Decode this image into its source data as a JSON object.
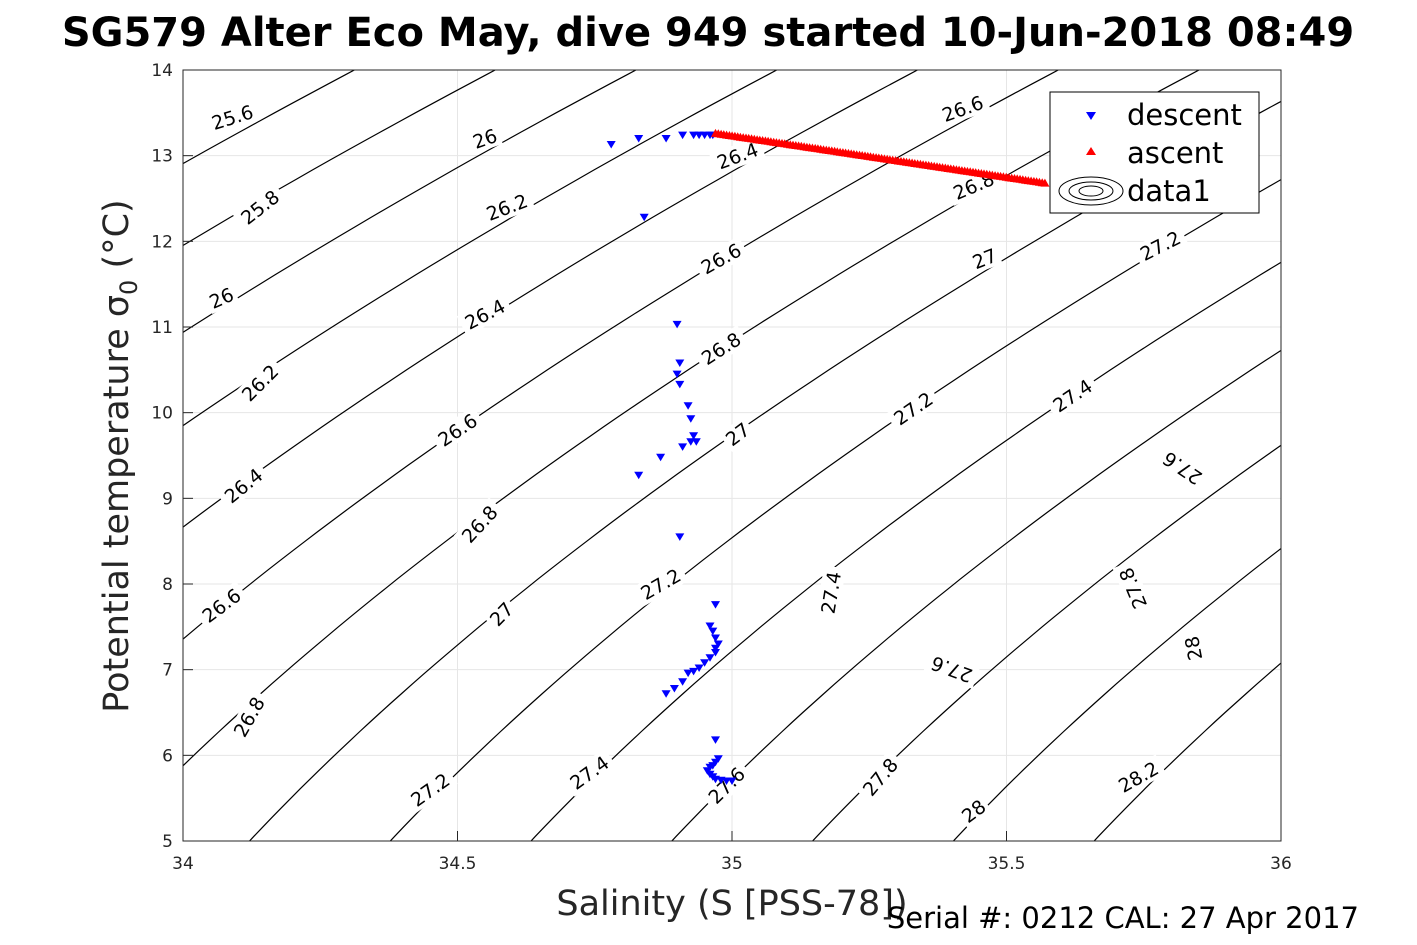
{
  "title": "SG579 Alter Eco May, dive 949 started 10-Jun-2018 08:49",
  "footer": "Serial #: 0212  CAL: 27 Apr 2017",
  "chart_data": {
    "type": "scatter",
    "xlabel": "Salinity (S [PSS-78])",
    "ylabel_main": "Potential temperature ",
    "ylabel_sym": "σ",
    "ylabel_sub": "0",
    "ylabel_unit": " (°C)",
    "xlim": [
      34,
      36
    ],
    "ylim": [
      5,
      14
    ],
    "xticks": [
      34,
      34.5,
      35,
      35.5,
      36
    ],
    "yticks": [
      5,
      6,
      7,
      8,
      9,
      10,
      11,
      12,
      13,
      14
    ],
    "grid": true,
    "legend_position": "top-right",
    "legend": [
      "descent",
      "ascent",
      "data1"
    ],
    "colors": {
      "descent": "#0000ff",
      "ascent": "#ff0000",
      "contour": "#000000",
      "axis": "#262626",
      "grid": "#e6e6e6"
    },
    "contours": {
      "type": "contour",
      "series_name": "data1",
      "levels": [
        "25.6",
        "25.8",
        "26",
        "26.2",
        "26.4",
        "26.6",
        "26.8",
        "27",
        "27.2",
        "27.4",
        "27.6",
        "27.8",
        "28",
        "28.2"
      ],
      "labels": [
        {
          "text": "25.6",
          "s": 34.09,
          "t": 13.45
        },
        {
          "text": "25.8",
          "s": 34.14,
          "t": 12.4
        },
        {
          "text": "26",
          "s": 34.07,
          "t": 11.34
        },
        {
          "text": "26.2",
          "s": 34.14,
          "t": 10.35
        },
        {
          "text": "26.4",
          "s": 34.11,
          "t": 9.15
        },
        {
          "text": "26.6",
          "s": 34.07,
          "t": 7.75
        },
        {
          "text": "26.8",
          "s": 34.12,
          "t": 6.45
        },
        {
          "text": "26",
          "s": 34.55,
          "t": 13.2
        },
        {
          "text": "26.2",
          "s": 34.59,
          "t": 12.4
        },
        {
          "text": "26.4",
          "s": 34.55,
          "t": 11.15
        },
        {
          "text": "26.6",
          "s": 34.5,
          "t": 9.8
        },
        {
          "text": "26.8",
          "s": 34.54,
          "t": 8.7
        },
        {
          "text": "27",
          "s": 34.58,
          "t": 7.65
        },
        {
          "text": "27.2",
          "s": 34.45,
          "t": 5.6
        },
        {
          "text": "26.4",
          "s": 35.01,
          "t": 13.0
        },
        {
          "text": "26.6",
          "s": 34.98,
          "t": 11.8
        },
        {
          "text": "26.8",
          "s": 34.98,
          "t": 10.75
        },
        {
          "text": "27",
          "s": 35.01,
          "t": 9.75
        },
        {
          "text": "27.2",
          "s": 34.87,
          "t": 8.0
        },
        {
          "text": "27.4",
          "s": 34.74,
          "t": 5.8
        },
        {
          "text": "27.6",
          "s": 34.99,
          "t": 5.65
        },
        {
          "text": "26.6",
          "s": 35.42,
          "t": 13.55
        },
        {
          "text": "26.8",
          "s": 35.44,
          "t": 12.65
        },
        {
          "text": "27",
          "s": 35.46,
          "t": 11.8
        },
        {
          "text": "27.2",
          "s": 35.33,
          "t": 10.05
        },
        {
          "text": "27.4",
          "s": 35.18,
          "t": 7.9
        },
        {
          "text": "27.6",
          "s": 35.4,
          "t": 7.0
        },
        {
          "text": "27.8",
          "s": 35.27,
          "t": 5.75
        },
        {
          "text": "28",
          "s": 35.44,
          "t": 5.35
        },
        {
          "text": "27.2",
          "s": 35.78,
          "t": 11.95
        },
        {
          "text": "27.4",
          "s": 35.62,
          "t": 10.2
        },
        {
          "text": "27.6",
          "s": 35.82,
          "t": 9.35
        },
        {
          "text": "27.8",
          "s": 35.73,
          "t": 7.95
        },
        {
          "text": "28",
          "s": 35.84,
          "t": 7.25
        },
        {
          "text": "28.2",
          "s": 35.74,
          "t": 5.75
        }
      ]
    },
    "series": [
      {
        "name": "descent",
        "marker": "triangle-down",
        "color": "#0000ff",
        "points": [
          [
            34.78,
            13.13
          ],
          [
            34.83,
            13.2
          ],
          [
            34.88,
            13.2
          ],
          [
            34.91,
            13.24
          ],
          [
            34.93,
            13.24
          ],
          [
            34.94,
            13.24
          ],
          [
            34.95,
            13.24
          ],
          [
            34.96,
            13.24
          ],
          [
            34.965,
            13.24
          ],
          [
            34.84,
            12.28
          ],
          [
            34.9,
            11.03
          ],
          [
            34.905,
            10.58
          ],
          [
            34.9,
            10.45
          ],
          [
            34.905,
            10.33
          ],
          [
            34.92,
            10.08
          ],
          [
            34.925,
            9.93
          ],
          [
            34.93,
            9.73
          ],
          [
            34.925,
            9.66
          ],
          [
            34.935,
            9.66
          ],
          [
            34.91,
            9.6
          ],
          [
            34.87,
            9.48
          ],
          [
            34.83,
            9.27
          ],
          [
            34.905,
            8.55
          ],
          [
            34.97,
            7.76
          ],
          [
            34.96,
            7.51
          ],
          [
            34.965,
            7.45
          ],
          [
            34.97,
            7.37
          ],
          [
            34.975,
            7.3
          ],
          [
            34.97,
            7.25
          ],
          [
            34.97,
            7.2
          ],
          [
            34.96,
            7.14
          ],
          [
            34.95,
            7.08
          ],
          [
            34.94,
            7.02
          ],
          [
            34.92,
            6.96
          ],
          [
            34.93,
            6.98
          ],
          [
            34.91,
            6.86
          ],
          [
            34.895,
            6.78
          ],
          [
            34.88,
            6.72
          ],
          [
            34.97,
            6.18
          ],
          [
            34.975,
            5.96
          ],
          [
            34.97,
            5.92
          ],
          [
            34.965,
            5.88
          ],
          [
            34.96,
            5.86
          ],
          [
            34.955,
            5.82
          ],
          [
            34.96,
            5.78
          ],
          [
            34.965,
            5.75
          ],
          [
            34.97,
            5.72
          ],
          [
            34.98,
            5.71
          ],
          [
            34.99,
            5.7
          ],
          [
            35.0,
            5.7
          ]
        ]
      },
      {
        "name": "ascent",
        "marker": "triangle-up",
        "color": "#ff0000",
        "line": {
          "s_start": 34.97,
          "t_start": 13.26,
          "s_end": 35.57,
          "t_end": 12.68,
          "count": 120
        }
      }
    ]
  }
}
